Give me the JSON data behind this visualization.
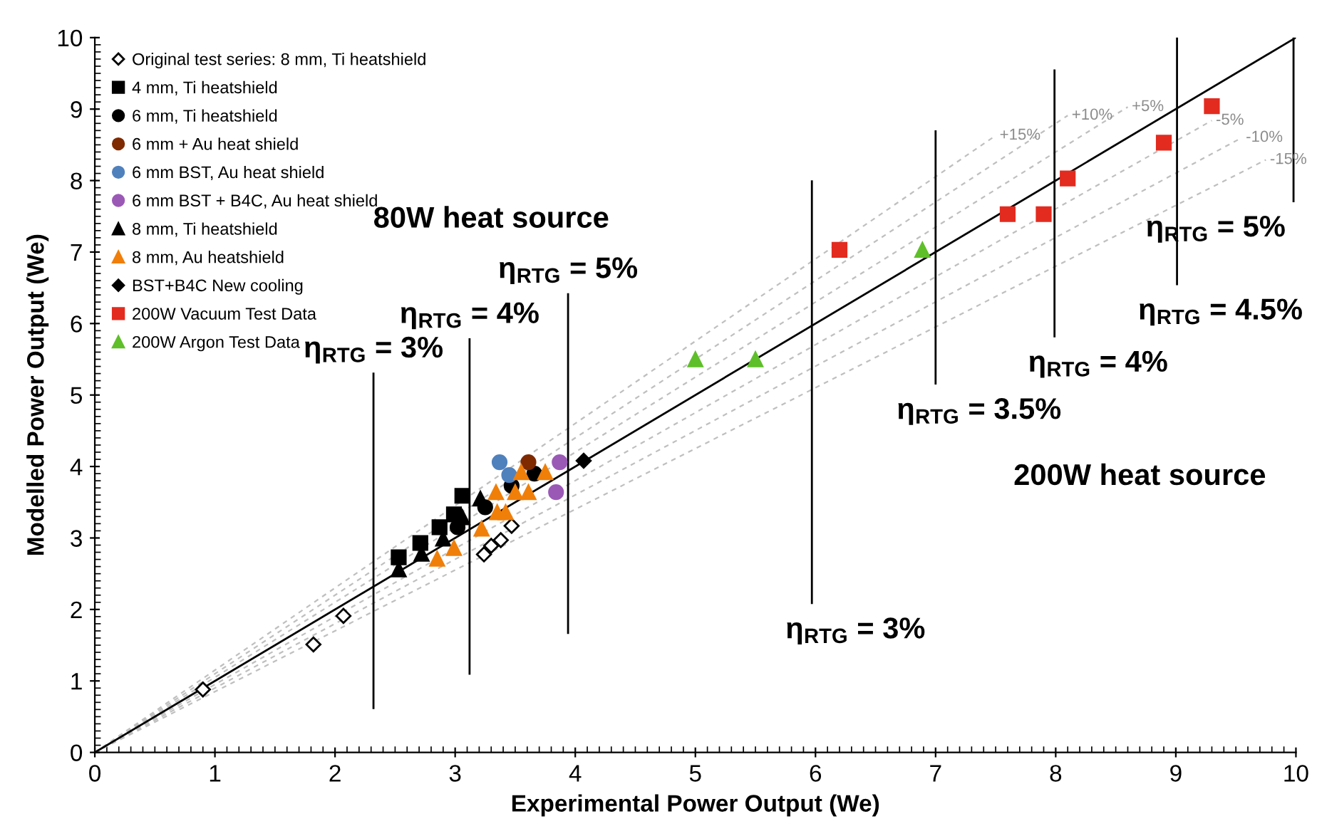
{
  "chart_data": {
    "type": "scatter",
    "xlabel": "Experimental Power Output (We)",
    "ylabel": "Modelled Power Output (We)",
    "xlim": [
      0,
      10
    ],
    "ylim": [
      0,
      10
    ],
    "xticks": [
      0,
      1,
      2,
      3,
      4,
      5,
      6,
      7,
      8,
      9,
      10
    ],
    "yticks": [
      0,
      1,
      2,
      3,
      4,
      5,
      6,
      7,
      8,
      9,
      10
    ],
    "grid": false,
    "legend": "top left",
    "series": [
      {
        "name": "+15%",
        "type": "line",
        "color": "#bfbfbf",
        "line_style": "dashed",
        "x": [
          0,
          7.5
        ],
        "values": [
          0,
          8.63
        ]
      },
      {
        "name": "+10%",
        "type": "line",
        "color": "#bfbfbf",
        "line_style": "dashed",
        "x": [
          0,
          8.1
        ],
        "values": [
          0,
          8.91
        ]
      },
      {
        "name": "+5%",
        "type": "line",
        "color": "#bfbfbf",
        "line_style": "dashed",
        "x": [
          0,
          8.6
        ],
        "values": [
          0,
          9.03
        ]
      },
      {
        "name": "-5%",
        "type": "line",
        "color": "#bfbfbf",
        "line_style": "dashed",
        "x": [
          0,
          9.3
        ],
        "values": [
          0,
          8.84
        ]
      },
      {
        "name": "-10%",
        "type": "line",
        "color": "#bfbfbf",
        "line_style": "dashed",
        "x": [
          0,
          9.55
        ],
        "values": [
          0,
          8.6
        ]
      },
      {
        "name": "-15%",
        "type": "line",
        "color": "#bfbfbf",
        "line_style": "dashed",
        "x": [
          0,
          9.75
        ],
        "values": [
          0,
          8.29
        ]
      },
      {
        "type": "line",
        "color": "#000000",
        "line_style": "solid",
        "x": [
          0,
          10
        ],
        "values": [
          0,
          10
        ]
      },
      {
        "name": "η$_{RTG}$ = 3%",
        "type": "line",
        "color": "#000000",
        "line_style": "solid",
        "x": [
          2.32,
          2.32
        ],
        "values": [
          0.62,
          5.3
        ]
      },
      {
        "name": "η$_{RTG}$ = 4%",
        "type": "line",
        "color": "#000000",
        "line_style": "solid",
        "x": [
          3.12,
          3.12
        ],
        "values": [
          1.1,
          5.78
        ]
      },
      {
        "name": "η$_{RTG}$ = 5%",
        "type": "line",
        "color": "#000000",
        "line_style": "solid",
        "x": [
          3.94,
          3.94
        ],
        "values": [
          1.67,
          6.41
        ]
      },
      {
        "name": "η$_{RTG}$ = 3%",
        "type": "line",
        "color": "#000000",
        "line_style": "solid",
        "x": [
          5.97,
          5.97
        ],
        "values": [
          2.09,
          7.99
        ]
      },
      {
        "name": "η$_{RTG}$ = 3.5%",
        "type": "line",
        "color": "#000000",
        "line_style": "solid",
        "x": [
          7.0,
          7.0
        ],
        "values": [
          5.16,
          8.69
        ]
      },
      {
        "name": "η$_{RTG}$ = 4%",
        "type": "line",
        "color": "#000000",
        "line_style": "solid",
        "x": [
          7.99,
          7.99
        ],
        "values": [
          5.82,
          9.54
        ]
      },
      {
        "name": "η$_{RTG}$ = 4.5%",
        "type": "line",
        "color": "#000000",
        "line_style": "solid",
        "x": [
          9.01,
          9.01
        ],
        "values": [
          6.55,
          10
        ]
      },
      {
        "name": "η$_{RTG}$ = 5%",
        "type": "line",
        "color": "#000000",
        "line_style": "solid",
        "x": [
          9.98,
          9.98
        ],
        "values": [
          7.71,
          10
        ]
      },
      {
        "name": "Original test series: 8 mm, Ti heatshield",
        "color": "#ffffff",
        "marker": "diamond",
        "x": [
          0.9,
          1.82,
          2.07,
          3.24,
          3.3,
          3.38,
          3.47
        ],
        "values": [
          0.88,
          1.51,
          1.91,
          2.77,
          2.89,
          2.97,
          3.17
        ]
      },
      {
        "name": "4 mm, Ti heatshield",
        "color": "#000000",
        "marker": "square",
        "x": [
          2.53,
          2.71,
          2.87,
          2.99,
          3.06
        ],
        "values": [
          2.73,
          2.93,
          3.15,
          3.33,
          3.59
        ]
      },
      {
        "name": "6 mm, Ti heatshield",
        "color": "#000000",
        "marker": "circle",
        "x": [
          3.02,
          3.25,
          3.47,
          3.66
        ],
        "values": [
          3.15,
          3.43,
          3.73,
          3.9
        ]
      },
      {
        "name": "6 mm + Au heat shield",
        "color": "#7f2a00",
        "marker": "circle",
        "x": [
          3.61
        ],
        "values": [
          4.06
        ]
      },
      {
        "name": "6 mm BST, Au heat shield",
        "color": "#4f81bd",
        "marker": "circle",
        "x": [
          3.37,
          3.45
        ],
        "values": [
          4.06,
          3.88
        ]
      },
      {
        "name": "6 mm BST + B4C, Au heat shield",
        "color": "#9b59b6",
        "marker": "circle",
        "x": [
          3.87,
          3.84
        ],
        "values": [
          4.06,
          3.64
        ]
      },
      {
        "name": "8 mm, Ti heatshield",
        "color": "#000000",
        "marker": "triangle",
        "x": [
          2.53,
          2.72,
          2.9,
          3.06,
          3.21
        ],
        "values": [
          2.56,
          2.78,
          2.99,
          3.29,
          3.55
        ]
      },
      {
        "name": "8 mm, Au heatshield",
        "color": "#f07f09",
        "marker": "triangle",
        "x": [
          2.85,
          2.99,
          3.22,
          3.34,
          3.35,
          3.42,
          3.5,
          3.55,
          3.61,
          3.75
        ],
        "values": [
          2.71,
          2.86,
          3.13,
          3.64,
          3.36,
          3.36,
          3.64,
          3.92,
          3.64,
          3.92
        ]
      },
      {
        "name": "BST+B4C New cooling",
        "color": "#000000",
        "marker": "diamond",
        "x": [
          4.07
        ],
        "values": [
          4.08
        ]
      },
      {
        "name": "200W Vacuum Test Data",
        "color": "#e32b1f",
        "marker": "square",
        "x": [
          6.2,
          7.6,
          7.9,
          8.1,
          8.9,
          9.3
        ],
        "values": [
          7.03,
          7.53,
          7.53,
          8.03,
          8.53,
          9.04
        ]
      },
      {
        "name": "200W Argon Test Data",
        "color": "#5fbf2a",
        "marker": "triangle",
        "x": [
          5.0,
          5.5,
          6.89
        ],
        "values": [
          5.5,
          5.5,
          7.03
        ]
      }
    ],
    "annotations": [
      "80W heat source",
      "200W heat source"
    ]
  }
}
